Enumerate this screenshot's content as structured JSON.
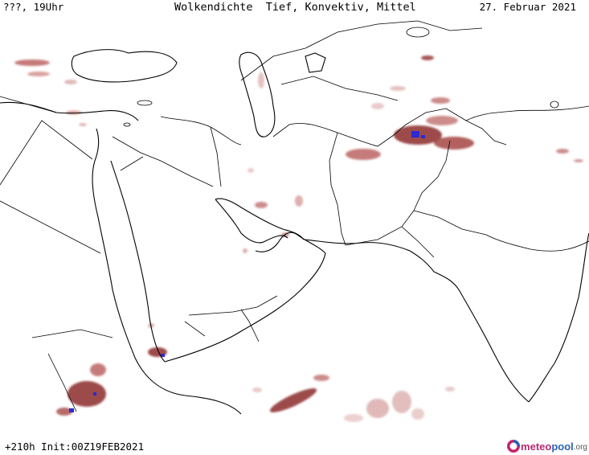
{
  "header": {
    "valid_time": "???, 19Uhr",
    "title": "Wolkendichte  Tief, Konvektiv, Mittel",
    "date": "27. Februar 2021"
  },
  "footer": {
    "run_info": "+210h Init:00Z19FEB2021"
  },
  "logo": {
    "part1": "meteo",
    "part2": "pool",
    "part3": ".org"
  },
  "legend_colors": {
    "cloud_low": "#d8a8a6",
    "cloud_mid": "#b65b58",
    "cloud_high": "#8c2a2a",
    "cloud_max": "#2a2ad6",
    "borders": "#000000",
    "background": "#ffffff"
  }
}
